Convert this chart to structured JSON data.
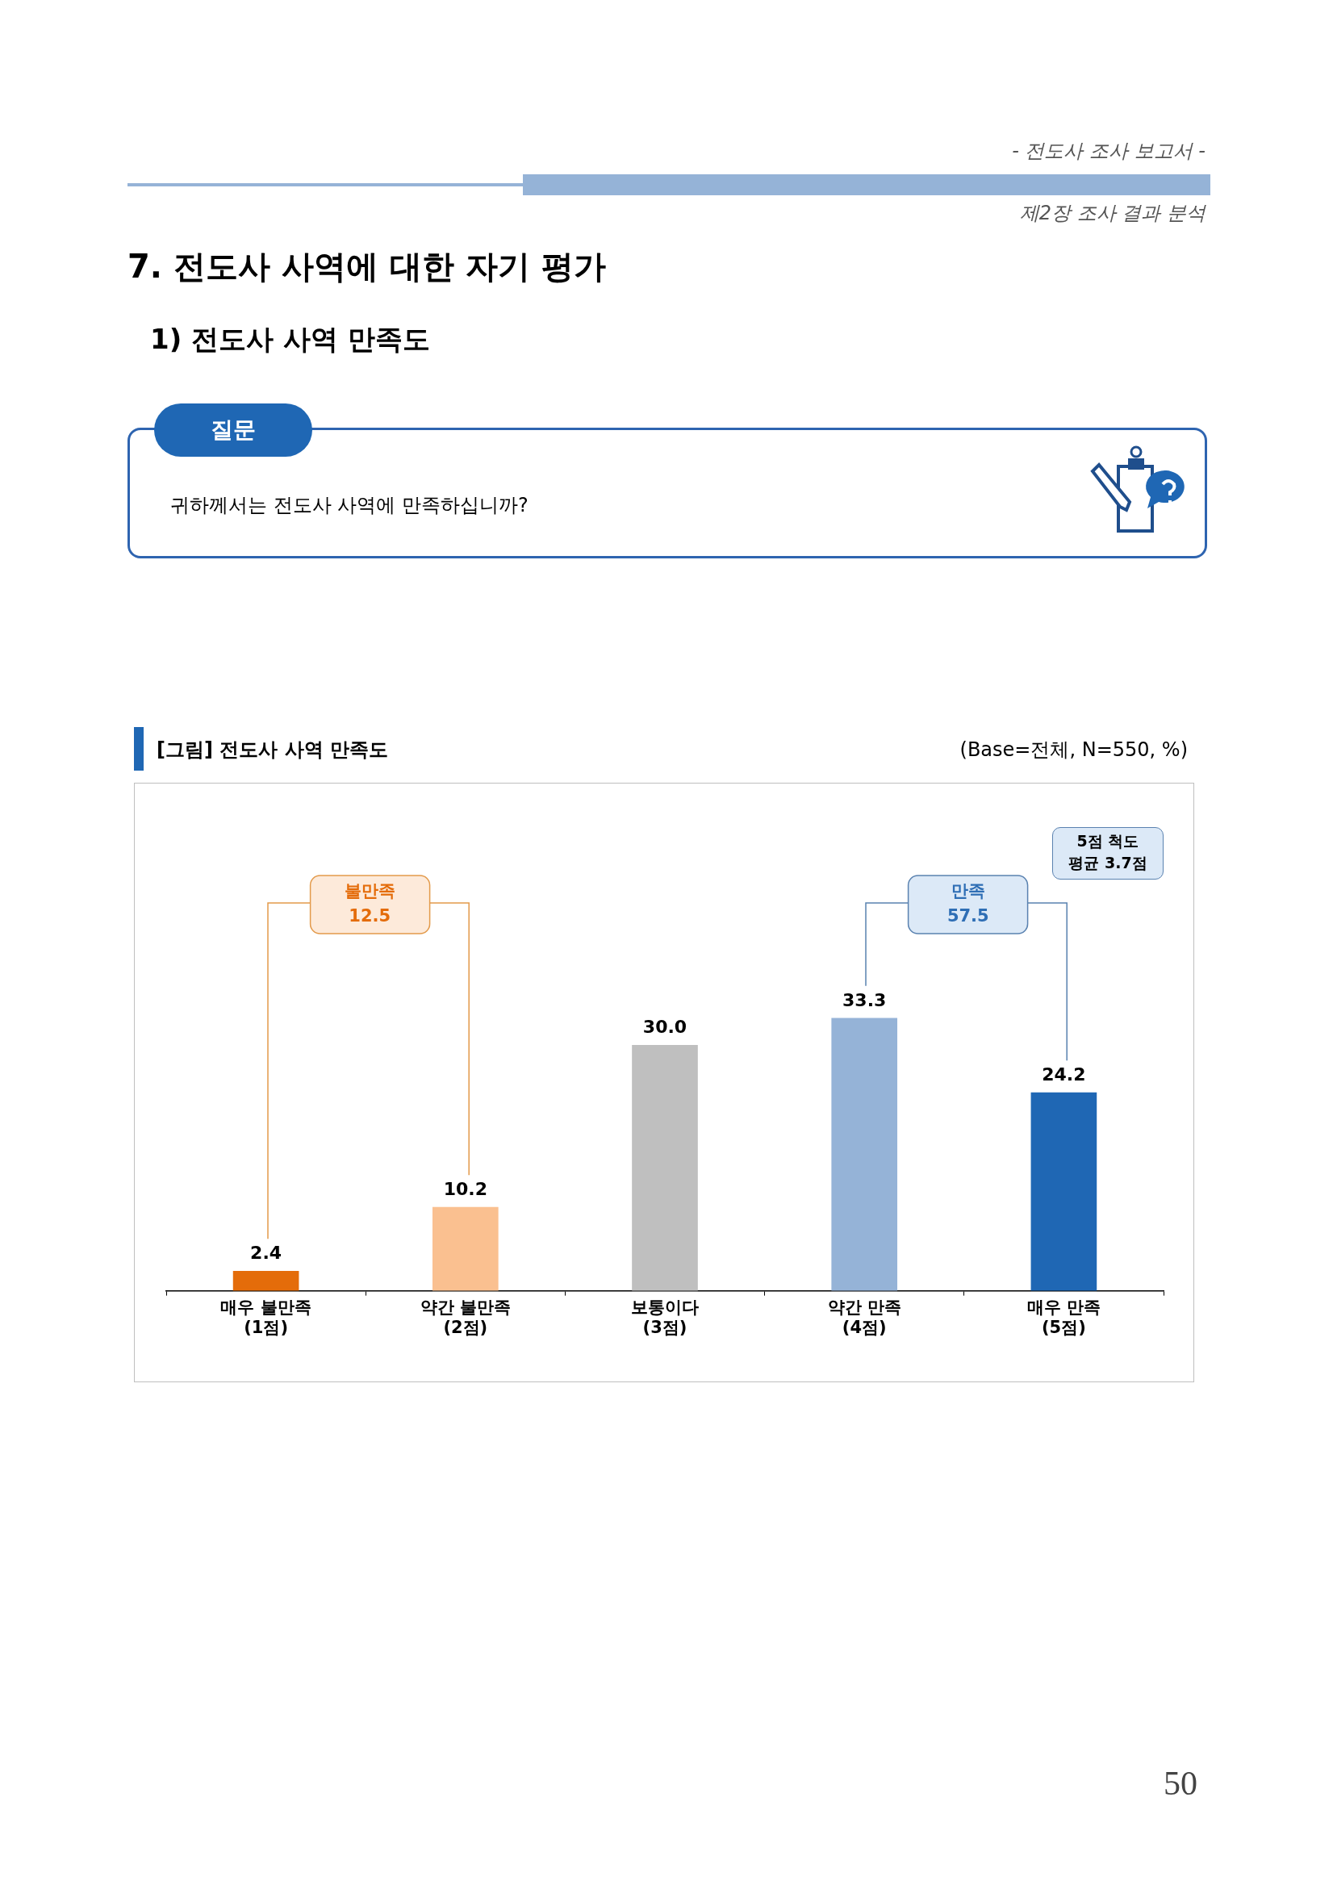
{
  "chart_data": {
    "type": "bar",
    "title": "[그림] 전도사 사역 만족도",
    "categories": [
      "매우 불만족\n(1점)",
      "약간 불만족\n(2점)",
      "보통이다\n(3점)",
      "약간 만족\n(4점)",
      "매우 만족\n(5점)"
    ],
    "values": [
      2.4,
      10.2,
      30.0,
      33.3,
      24.2
    ],
    "colors": [
      "#e46c0a",
      "#fac090",
      "#bfbfbf",
      "#95b3d7",
      "#1f67b4"
    ],
    "value_labels": [
      "2.4",
      "10.2",
      "30.0",
      "33.3",
      "24.2"
    ],
    "grid": false,
    "legend": false,
    "annotations": [
      "- 전도사 조사 보고서 -",
      "제2장 조사 결과 분석",
      "7. 전도사 사역에 대한 자기 평가",
      "1) 전도사 사역 만족도",
      "질문",
      "귀하께서는 전도사 사역에 만족하십니까?",
      "(Base=전체, N=550, %)",
      "불만족\n12.5",
      "만족\n57.5",
      "5점 척도\n평균 3.7점",
      "50"
    ]
  }
}
